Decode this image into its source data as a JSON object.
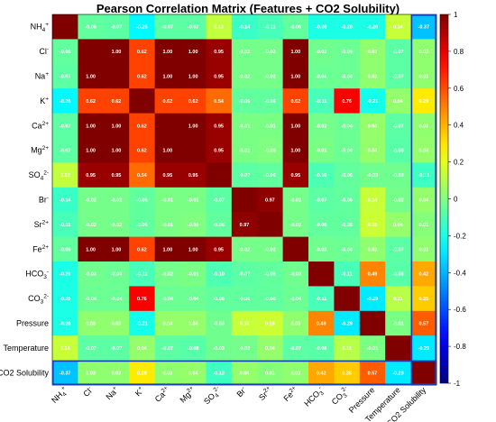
{
  "chart_data": {
    "type": "heatmap",
    "title": "Pearson Correlation Matrix (Features + CO2 Solubility)",
    "labels": [
      "NH4+",
      "Cl-",
      "Na+",
      "K+",
      "Ca2+",
      "Mg2+",
      "SO42-",
      "Br-",
      "Sr2+",
      "Fe2+",
      "HCO3-",
      "CO32-",
      "Pressure",
      "Temperature",
      "CO2 Solubility"
    ],
    "label_parts": [
      {
        "base": "NH",
        "sub": "4",
        "sup": "+"
      },
      {
        "base": "Cl",
        "sub": "",
        "sup": "-"
      },
      {
        "base": "Na",
        "sub": "",
        "sup": "+"
      },
      {
        "base": "K",
        "sub": "",
        "sup": "+"
      },
      {
        "base": "Ca",
        "sub": "",
        "sup": "2+"
      },
      {
        "base": "Mg",
        "sub": "",
        "sup": "2+"
      },
      {
        "base": "SO",
        "sub": "4",
        "sup": "2-"
      },
      {
        "base": "Br",
        "sub": "",
        "sup": "-"
      },
      {
        "base": "Sr",
        "sub": "",
        "sup": "2+"
      },
      {
        "base": "Fe",
        "sub": "",
        "sup": "2+"
      },
      {
        "base": "HCO",
        "sub": "3",
        "sup": "-"
      },
      {
        "base": "CO",
        "sub": "3",
        "sup": "2-"
      },
      {
        "base": "Pressure",
        "sub": "",
        "sup": ""
      },
      {
        "base": "Temperature",
        "sub": "",
        "sup": ""
      },
      {
        "base": "CO2 Solubility",
        "sub": "",
        "sup": ""
      }
    ],
    "matrix": [
      [
        1.0,
        -0.06,
        -0.07,
        -0.26,
        -0.07,
        -0.07,
        0.13,
        -0.14,
        -0.11,
        -0.06,
        -0.2,
        -0.2,
        -0.2,
        0.14,
        -0.37
      ],
      [
        -0.06,
        1.0,
        1.0,
        0.62,
        1.0,
        1.0,
        0.95,
        -0.02,
        -0.02,
        1.0,
        -0.03,
        -0.04,
        0.03,
        -0.07,
        0.03
      ],
      [
        -0.07,
        1.0,
        1.0,
        0.62,
        1.0,
        1.0,
        0.95,
        -0.02,
        -0.02,
        1.0,
        -0.04,
        -0.04,
        0.03,
        -0.07,
        0.03
      ],
      [
        -0.26,
        0.62,
        0.62,
        1.0,
        0.62,
        0.62,
        0.54,
        -0.06,
        -0.06,
        0.62,
        -0.11,
        0.76,
        -0.21,
        0.04,
        0.29
      ],
      [
        -0.07,
        1.0,
        1.0,
        0.62,
        1.0,
        1.0,
        0.95,
        -0.01,
        -0.01,
        1.0,
        -0.02,
        -0.04,
        0.04,
        -0.07,
        0.03
      ],
      [
        -0.07,
        1.0,
        1.0,
        0.62,
        1.0,
        1.0,
        0.95,
        -0.01,
        -0.0,
        1.0,
        -0.01,
        -0.04,
        0.04,
        -0.08,
        0.04
      ],
      [
        0.13,
        0.95,
        0.95,
        0.54,
        0.95,
        0.95,
        1.0,
        -0.07,
        -0.06,
        0.95,
        -0.1,
        -0.06,
        -0.03,
        -0.03,
        -0.13
      ],
      [
        -0.14,
        -0.02,
        -0.02,
        -0.06,
        -0.01,
        -0.01,
        -0.07,
        1.0,
        0.97,
        -0.02,
        -0.07,
        -0.06,
        0.14,
        -0.02,
        0.04
      ],
      [
        -0.11,
        -0.02,
        -0.02,
        -0.06,
        -0.01,
        -0.0,
        -0.06,
        0.97,
        1.0,
        -0.02,
        -0.06,
        -0.06,
        0.15,
        0.04,
        0.01
      ],
      [
        -0.06,
        1.0,
        1.0,
        0.62,
        1.0,
        1.0,
        0.95,
        -0.02,
        -0.02,
        1.0,
        -0.03,
        -0.04,
        0.03,
        -0.07,
        0.03
      ],
      [
        -0.2,
        -0.03,
        -0.04,
        -0.11,
        -0.02,
        -0.01,
        -0.1,
        -0.07,
        -0.06,
        -0.03,
        1.0,
        -0.11,
        0.49,
        -0.08,
        0.42
      ],
      [
        -0.2,
        -0.04,
        -0.04,
        0.76,
        -0.04,
        -0.04,
        -0.06,
        -0.06,
        -0.06,
        -0.04,
        -0.11,
        1.0,
        -0.29,
        0.11,
        0.35
      ],
      [
        -0.2,
        0.03,
        0.03,
        -0.21,
        0.04,
        0.04,
        -0.03,
        0.14,
        0.15,
        0.03,
        0.49,
        -0.29,
        1.0,
        -0.01,
        0.57
      ],
      [
        0.14,
        -0.07,
        -0.07,
        0.04,
        -0.07,
        -0.08,
        -0.03,
        -0.02,
        0.04,
        -0.07,
        -0.08,
        0.11,
        -0.01,
        1.0,
        -0.29
      ],
      [
        -0.37,
        0.03,
        0.03,
        0.29,
        0.03,
        0.04,
        -0.13,
        0.04,
        0.01,
        0.03,
        0.42,
        0.35,
        0.57,
        -0.29,
        1.0
      ]
    ],
    "colorbar": {
      "min": -1,
      "max": 1,
      "ticks": [
        "1",
        "0.8",
        "0.6",
        "0.4",
        "0.2",
        "0",
        "-0.2",
        "-0.4",
        "-0.6",
        "-0.8",
        "-1"
      ],
      "colormap": "jet"
    },
    "highlight_color": "#1a3fb0"
  }
}
